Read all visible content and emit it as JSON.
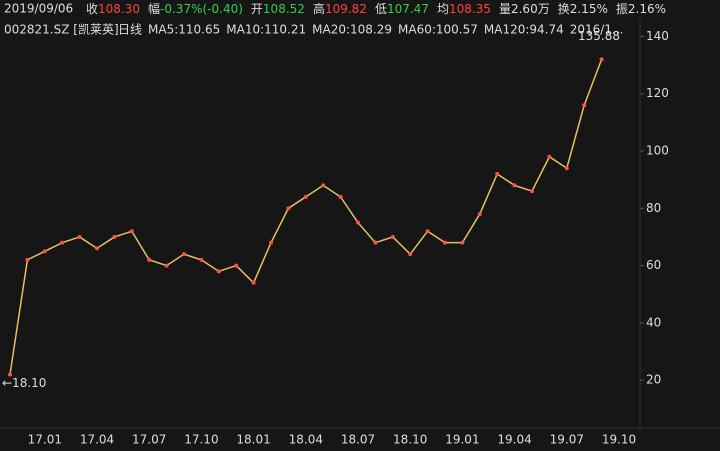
{
  "header": {
    "date": "2019/09/06",
    "fields": [
      {
        "label": "收",
        "value": "108.30",
        "color": "#ff4040"
      },
      {
        "label": "幅",
        "value": "-0.37%(-0.40)",
        "color": "#30d050"
      },
      {
        "label": "开",
        "value": "108.52",
        "color": "#30d050"
      },
      {
        "label": "高",
        "value": "109.82",
        "color": "#ff4040"
      },
      {
        "label": "低",
        "value": "107.47",
        "color": "#30d050"
      },
      {
        "label": "均",
        "value": "108.35",
        "color": "#ff4040"
      },
      {
        "label": "量",
        "value": "2.60万",
        "color": "#dddddd"
      },
      {
        "label": "换",
        "value": "2.15%",
        "color": "#dddddd"
      },
      {
        "label": "振",
        "value": "2.16%",
        "color": "#dddddd"
      }
    ],
    "stock": "002821.SZ [凯莱英]",
    "indicators": [
      {
        "text": "日线",
        "color": "#ff3030"
      },
      {
        "text": "MA5:110.65",
        "color": "#e8e8b0"
      },
      {
        "text": "MA10:110.21",
        "color": "#f0d000"
      },
      {
        "text": "MA20:108.29",
        "color": "#e040e0"
      },
      {
        "text": "MA60:100.57",
        "color": "#40d040"
      },
      {
        "text": "MA120:94.74",
        "color": "#60d0e0"
      },
      {
        "text": "2016/1...",
        "color": "#dddddd"
      }
    ]
  },
  "chart_data": {
    "type": "line",
    "categories": [
      null,
      null,
      "17.01",
      null,
      null,
      "17.04",
      null,
      null,
      "17.07",
      null,
      null,
      "17.10",
      null,
      null,
      "18.01",
      null,
      null,
      "18.04",
      null,
      null,
      "18.07",
      null,
      null,
      "18.10",
      null,
      null,
      "19.01",
      null,
      null,
      "19.04",
      null,
      null,
      "19.07",
      null,
      null,
      "19.10"
    ],
    "values": [
      22,
      62,
      65,
      68,
      70,
      66,
      70,
      72,
      62,
      60,
      64,
      62,
      58,
      60,
      54,
      68,
      80,
      84,
      88,
      84,
      75,
      68,
      70,
      64,
      72,
      68,
      68,
      78,
      92,
      88,
      86,
      98,
      94,
      116,
      132,
      null
    ],
    "color": "#e8c060",
    "ylim": [
      4,
      144
    ],
    "yticks": [
      20,
      40,
      60,
      80,
      100,
      120,
      140
    ],
    "annotations": [
      {
        "text": "135.88",
        "value": 135.88,
        "color": "#ff4060"
      },
      {
        "text": "←18.10",
        "value": 18.1,
        "color": "#60d0e0"
      }
    ]
  }
}
